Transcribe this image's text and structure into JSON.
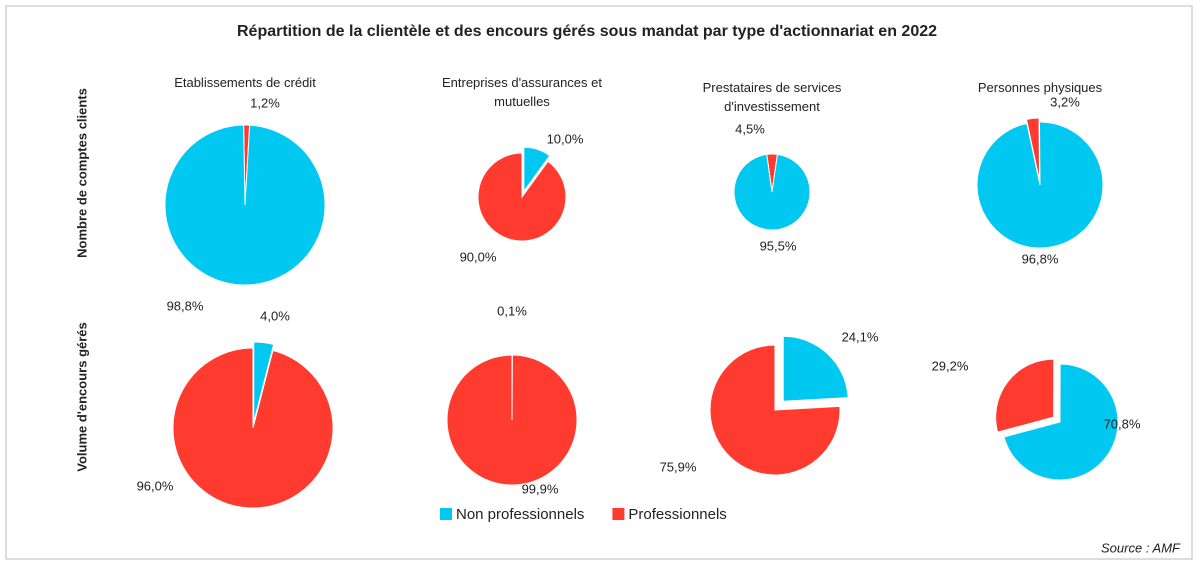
{
  "title": "Répartition de la clientèle et des encours gérés sous mandat par type d'actionnariat en 2022",
  "row_labels": [
    "Nombre de comptes clients",
    "Volume d'encours gérés"
  ],
  "legend": {
    "labels": [
      "Non professionnels",
      "Professionnels"
    ],
    "colors": [
      "#00c8f0",
      "#ff3a2f"
    ]
  },
  "source": "Source : AMF",
  "chart_data": [
    {
      "type": "pie",
      "title": "Etablissements de crédit",
      "values": [
        98.8,
        1.2
      ],
      "value_labels": [
        "98,8%",
        "1,2%"
      ]
    },
    {
      "type": "pie",
      "title": "Entreprises d'assurances et mutuelles",
      "values": [
        10.0,
        90.0
      ],
      "value_labels": [
        "10,0%",
        "90,0%"
      ]
    },
    {
      "type": "pie",
      "title": "Prestataires de services d'investissement",
      "values": [
        95.5,
        4.5
      ],
      "value_labels": [
        "95,5%",
        "4,5%"
      ]
    },
    {
      "type": "pie",
      "title": "Personnes physiques",
      "values": [
        96.8,
        3.2
      ],
      "value_labels": [
        "96,8%",
        "3,2%"
      ]
    },
    {
      "type": "pie",
      "values": [
        4.0,
        96.0
      ],
      "value_labels": [
        "4,0%",
        "96,0%"
      ]
    },
    {
      "type": "pie",
      "values": [
        0.1,
        99.9
      ],
      "value_labels": [
        "0,1%",
        "99,9%"
      ]
    },
    {
      "type": "pie",
      "values": [
        24.1,
        75.9
      ],
      "value_labels": [
        "24,1%",
        "75,9%"
      ]
    },
    {
      "type": "pie",
      "values": [
        70.8,
        29.2
      ],
      "value_labels": [
        "70,8%",
        "29,2%"
      ]
    }
  ]
}
